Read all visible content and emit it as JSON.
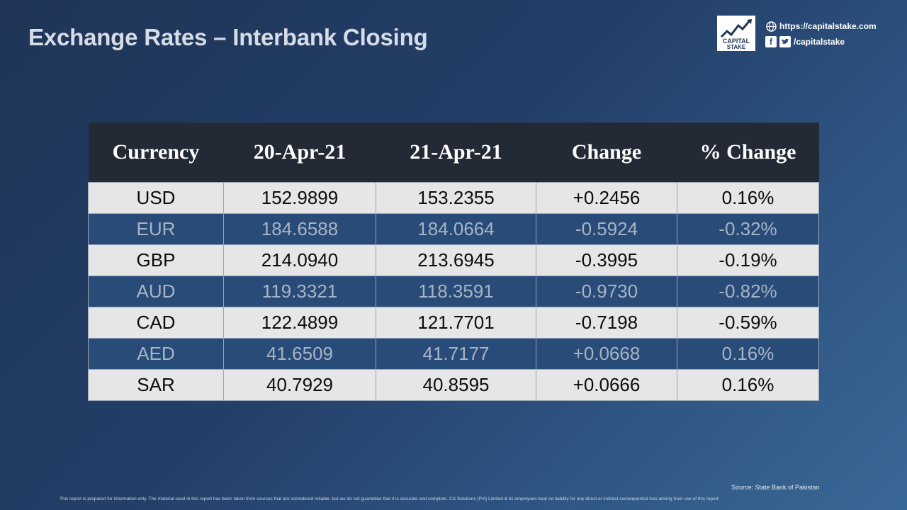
{
  "title": "Exchange Rates – Interbank Closing",
  "brand": {
    "logo_line1": "CAPITAL",
    "logo_line2": "STAKE",
    "website": "https://capitalstake.com",
    "social_handle": "/capitalstake",
    "icons": [
      "globe-icon",
      "facebook-icon",
      "twitter-icon"
    ]
  },
  "table": {
    "headers": [
      "Currency",
      "20-Apr-21",
      "21-Apr-21",
      "Change",
      "% Change"
    ],
    "rows": [
      [
        "USD",
        "152.9899",
        "153.2355",
        "+0.2456",
        "0.16%"
      ],
      [
        "EUR",
        "184.6588",
        "184.0664",
        "-0.5924",
        "-0.32%"
      ],
      [
        "GBP",
        "214.0940",
        "213.6945",
        "-0.3995",
        "-0.19%"
      ],
      [
        "AUD",
        "119.3321",
        "118.3591",
        "-0.9730",
        "-0.82%"
      ],
      [
        "CAD",
        "122.4899",
        "121.7701",
        "-0.7198",
        "-0.59%"
      ],
      [
        "AED",
        "41.6509",
        "41.7177",
        "+0.0668",
        "0.16%"
      ],
      [
        "SAR",
        "40.7929",
        "40.8595",
        "+0.0666",
        "0.16%"
      ]
    ]
  },
  "source": "Source: State Bank of Pakistan",
  "disclaimer": "This report is prepared for information only. The material used in this report has been taken from sources that are considered reliable, but we do not guarantee that it is accurate and complete. CS Solutions (Pvt) Limited & its employees bear no liability for any direct or indirect consequential loss arising from use of this report.",
  "colors": {
    "header_bg": "#232a35",
    "row_light": "#e6e6e6",
    "row_dark": "#284b78"
  }
}
